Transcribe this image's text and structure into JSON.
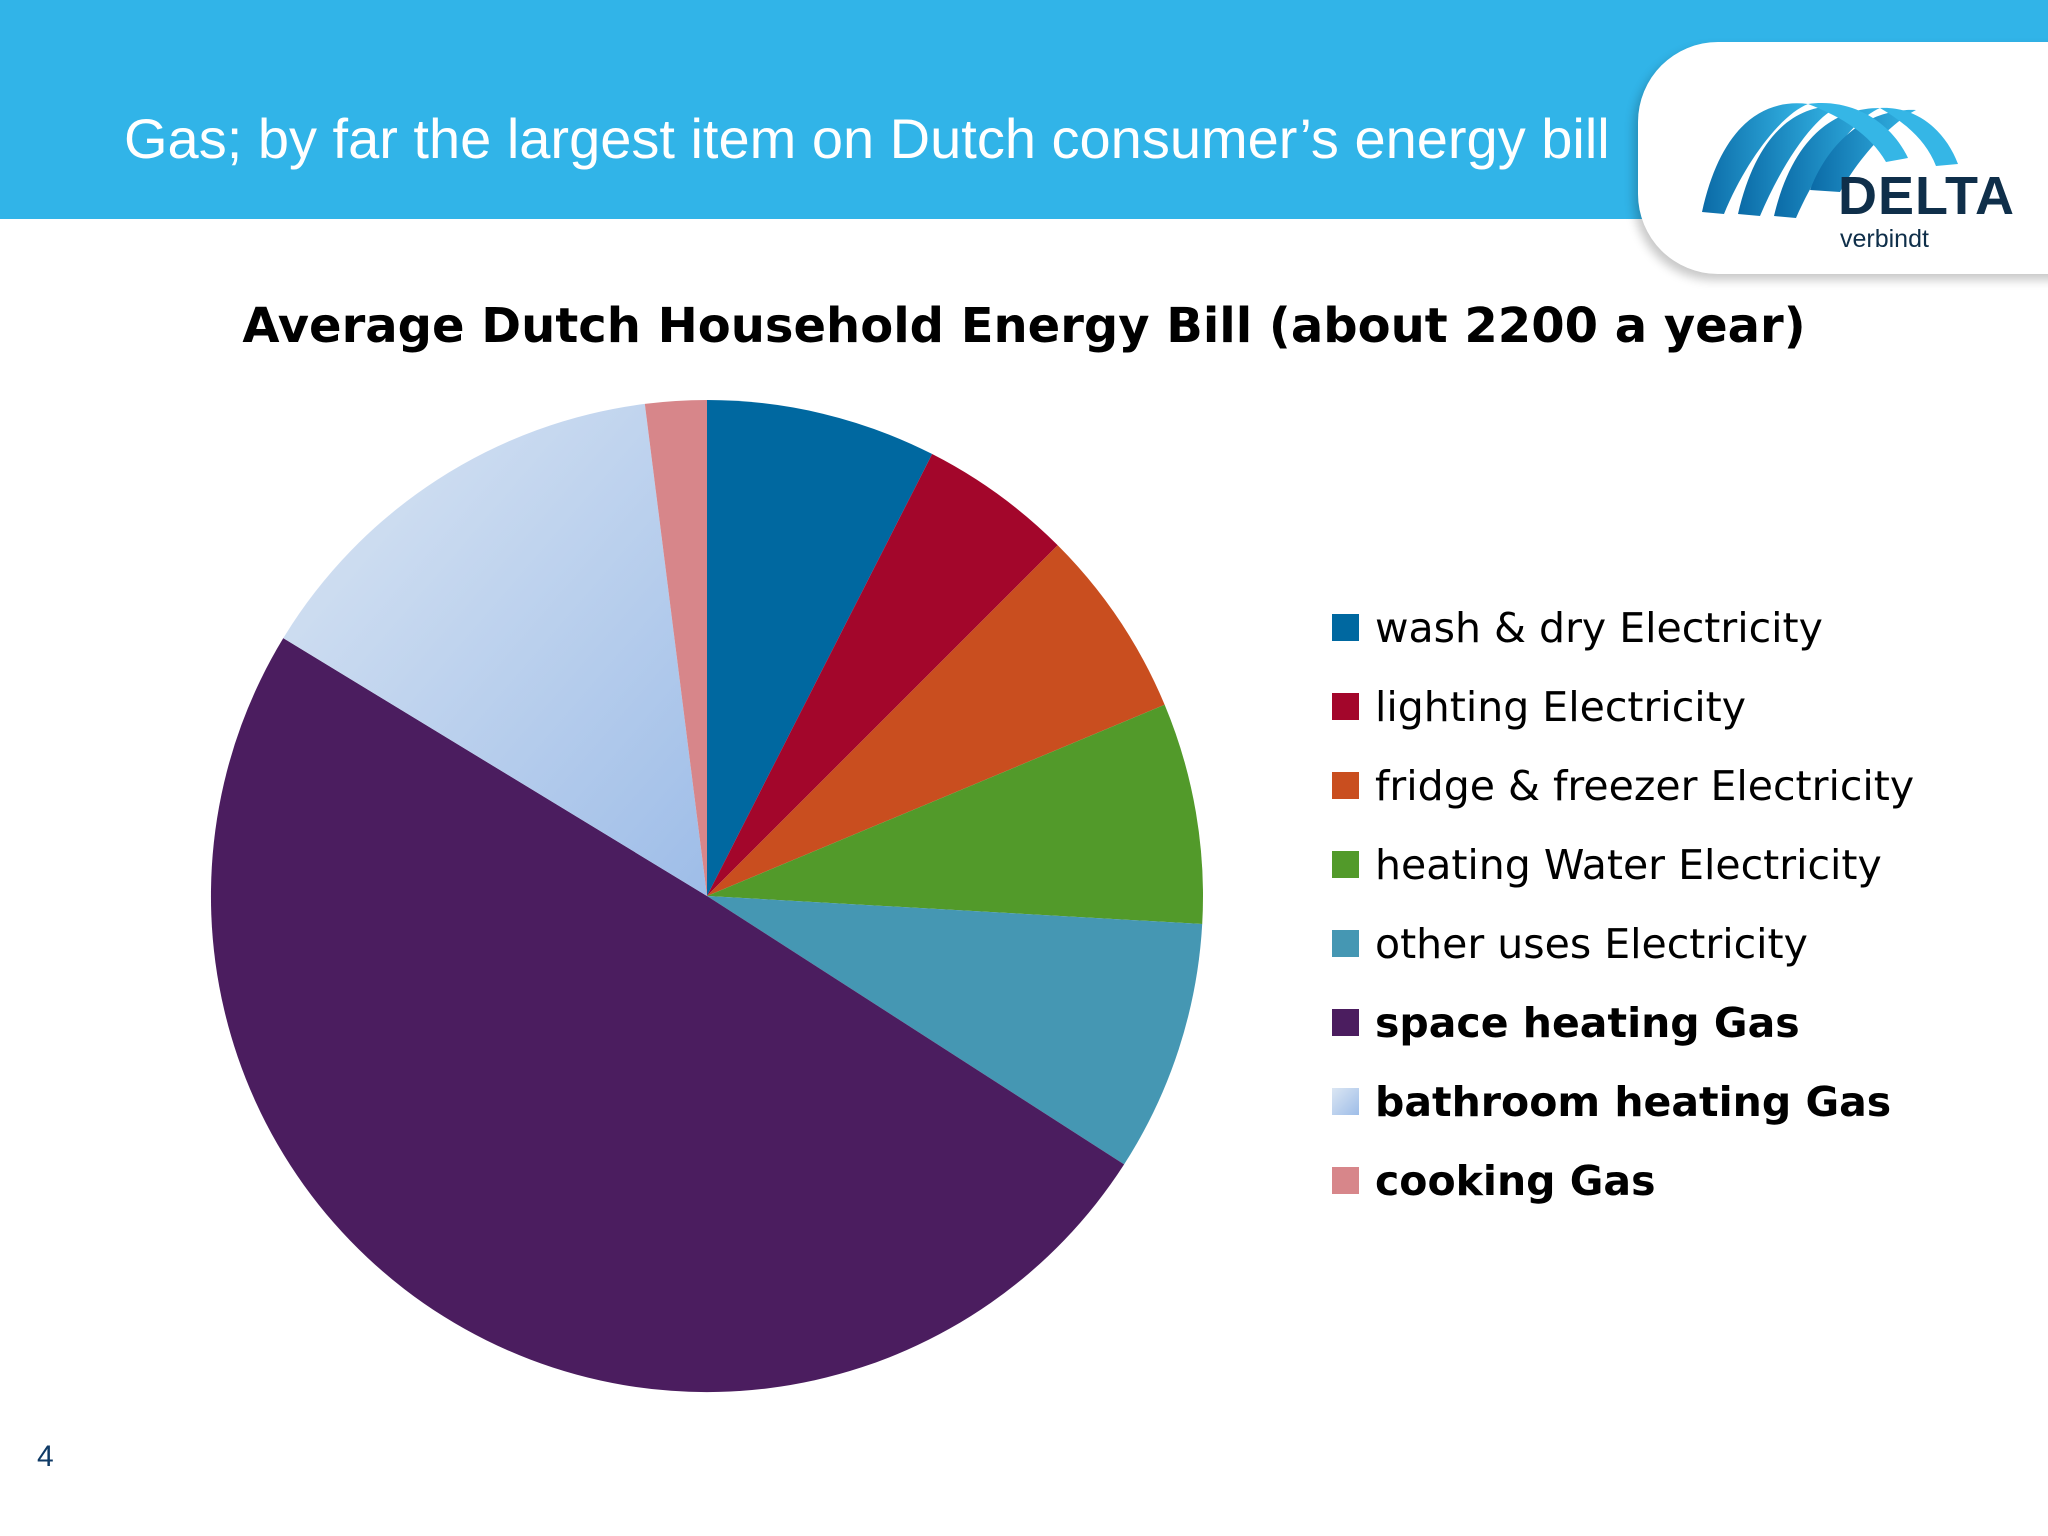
{
  "slide": {
    "title": "Gas; by far the largest item on Dutch consumer’s energy bill",
    "page_number": "4"
  },
  "logo": {
    "name": "DELTA",
    "tagline": "verbindt"
  },
  "colors": {
    "header": "#31b4e8",
    "wash_dry": "#0068a0",
    "lighting": "#a3062b",
    "fridge": "#c94e1f",
    "heating_water": "#529a2a",
    "other_uses": "#4597b3",
    "space_heating": "#4b1d5f",
    "bathroom_heating": "#b4cdea",
    "cooking": "#d7868a"
  },
  "chart_data": {
    "type": "pie",
    "title": "Average Dutch Household Energy Bill (about 2200 a year)",
    "legend_position": "right",
    "slices": [
      {
        "label": "wash & dry Electricity",
        "value": 7.5,
        "color": "#0068a0",
        "bold": false
      },
      {
        "label": "lighting Electricity",
        "value": 5.0,
        "color": "#a3062b",
        "bold": false
      },
      {
        "label": "fridge & freezer Electricity",
        "value": 6.2,
        "color": "#c94e1f",
        "bold": false
      },
      {
        "label": "heating Water Electricity",
        "value": 7.2,
        "color": "#529a2a",
        "bold": false
      },
      {
        "label": "other uses Electricity",
        "value": 8.2,
        "color": "#4597b3",
        "bold": false
      },
      {
        "label": "space heating Gas",
        "value": 49.6,
        "color": "#4b1d5f",
        "bold": true
      },
      {
        "label": "bathroom heating Gas",
        "value": 14.3,
        "color": "#b4cdea",
        "bold": true
      },
      {
        "label": "cooking Gas",
        "value": 2.0,
        "color": "#d7868a",
        "bold": true
      }
    ]
  }
}
